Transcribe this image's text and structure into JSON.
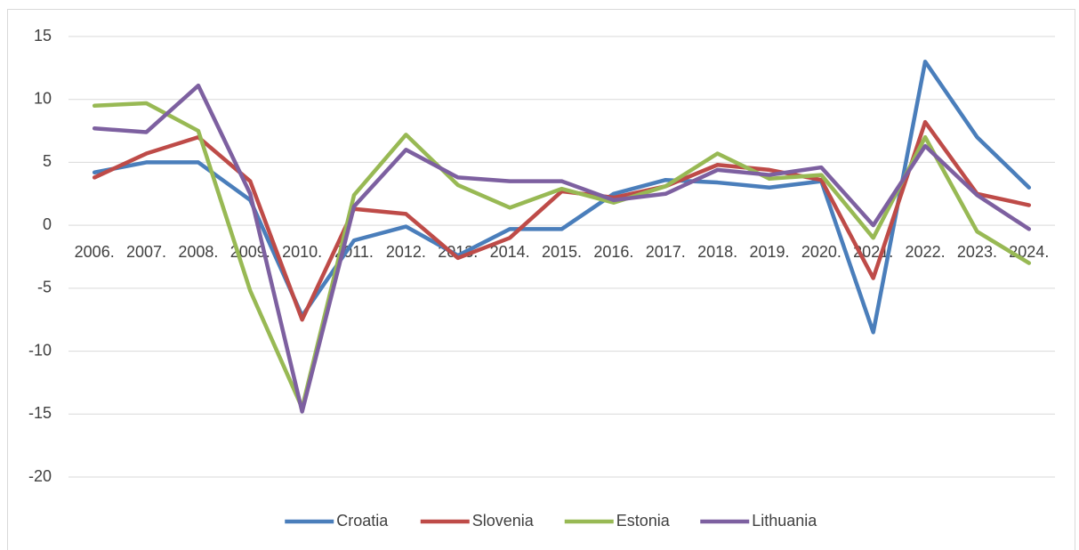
{
  "chart_data": {
    "type": "line",
    "categories": [
      "2006.",
      "2007.",
      "2008.",
      "2009.",
      "2010.",
      "2011.",
      "2012.",
      "2013.",
      "2014.",
      "2015.",
      "2016.",
      "2017.",
      "2018.",
      "2019.",
      "2020.",
      "2021.",
      "2022.",
      "2023.",
      "2024."
    ],
    "series": [
      {
        "name": "Croatia",
        "color": "#4a7ebb",
        "values": [
          4.2,
          5.0,
          5.0,
          2.0,
          -7.2,
          -1.2,
          -0.1,
          -2.4,
          -0.3,
          -0.3,
          2.5,
          3.6,
          3.4,
          3.0,
          3.5,
          -8.5,
          13.0,
          7.0,
          3.0
        ]
      },
      {
        "name": "Slovenia",
        "color": "#be4b48",
        "values": [
          3.8,
          5.7,
          7.0,
          3.5,
          -7.5,
          1.3,
          0.9,
          -2.6,
          -1.0,
          2.7,
          2.2,
          3.1,
          4.8,
          4.4,
          3.6,
          -4.2,
          8.2,
          2.5,
          1.6
        ]
      },
      {
        "name": "Estonia",
        "color": "#98b954",
        "values": [
          9.5,
          9.7,
          7.5,
          -5.2,
          -14.5,
          2.4,
          7.2,
          3.2,
          1.4,
          2.9,
          1.8,
          3.1,
          5.7,
          3.7,
          4.0,
          -1.0,
          7.0,
          -0.5,
          -3.0
        ]
      },
      {
        "name": "Lithuania",
        "color": "#7d60a0",
        "values": [
          7.7,
          7.4,
          11.1,
          2.5,
          -14.8,
          1.5,
          6.0,
          3.8,
          3.5,
          3.5,
          2.0,
          2.5,
          4.4,
          4.0,
          4.6,
          0.0,
          6.3,
          2.4,
          -0.3
        ]
      }
    ],
    "ylim": [
      -20,
      15
    ],
    "yticks": [
      -20,
      -15,
      -10,
      -5,
      0,
      5,
      10,
      15
    ],
    "grid": true,
    "legend": "bottom"
  }
}
